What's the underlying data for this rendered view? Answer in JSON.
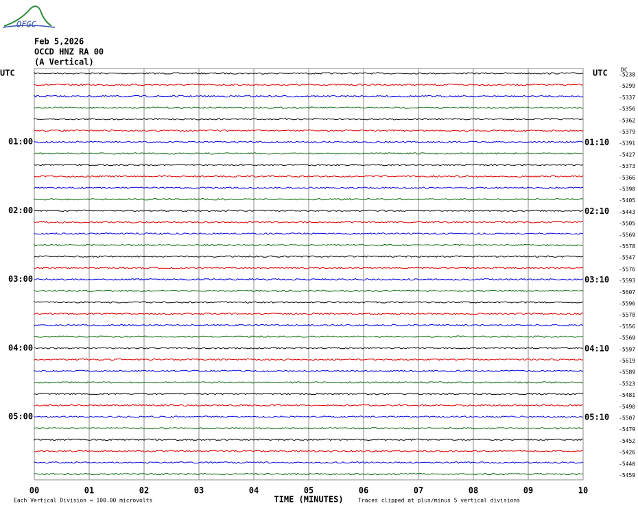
{
  "logo": "OFGC",
  "header": {
    "date": "Feb 5,2026",
    "station": "OCCD HNZ RA 00",
    "component": "(A Vertical)"
  },
  "left_axis": {
    "title": "UTC",
    "labels": [
      "01:00",
      "02:00",
      "03:00",
      "04:00",
      "05:00"
    ]
  },
  "right_axis": {
    "title": "UTC",
    "labels": [
      "01:10",
      "02:10",
      "03:10",
      "04:10",
      "05:10"
    ]
  },
  "dc": {
    "title": "DC",
    "values": [
      -5238,
      -5299,
      -5337,
      -5356,
      -5362,
      -5379,
      -5391,
      -5427,
      -5373,
      -5366,
      -5398,
      -5405,
      -5443,
      -5505,
      -5569,
      -5578,
      -5547,
      -5576,
      -5593,
      -5607,
      -5596,
      -5578,
      -5556,
      -5569,
      -5597,
      -5619,
      -5589,
      -5523,
      -5481,
      -5490,
      -5507,
      -5479,
      -5452,
      -5426,
      -5440,
      -5459
    ]
  },
  "x_axis": {
    "title": "TIME (MINUTES)",
    "labels": [
      "00",
      "01",
      "02",
      "03",
      "04",
      "05",
      "06",
      "07",
      "08",
      "09",
      "10"
    ]
  },
  "footer": {
    "scale": "Each Vertical Division =  100.00 microvolts",
    "clip": "Traces clipped at plus/minus 5 vertical divisions"
  },
  "trace_colors": [
    "#000000",
    "#e00000",
    "#0000e0",
    "#006400"
  ]
}
